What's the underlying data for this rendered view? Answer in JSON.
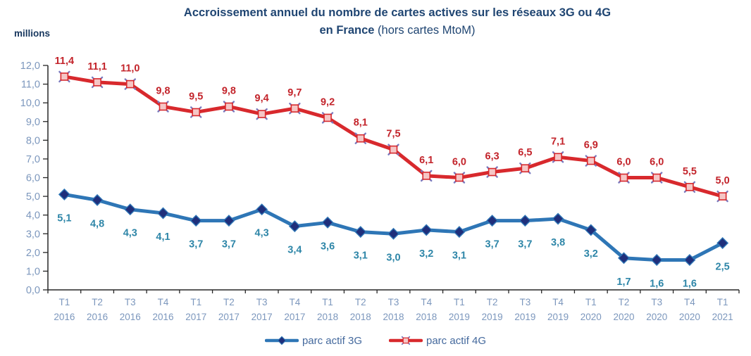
{
  "header": {
    "title_line1": "Accroissement annuel du nombre de cartes actives sur les réseaux 3G ou 4G",
    "title_line2_bold": "en France",
    "title_line2_rest": " (hors cartes MtoM)",
    "unit_label": "millions"
  },
  "colors": {
    "title": "#1F4572",
    "unit_label": "#17375E",
    "axis_line": "#262626",
    "axis_tick_text": "#7C97BD",
    "legend_text": "#44699D",
    "background": "#FFFFFF"
  },
  "chart_data": {
    "type": "line",
    "title": "Accroissement annuel du nombre de cartes actives sur les réseaux 3G ou 4G en France (hors cartes MtoM)",
    "xlabel": "",
    "ylabel": "millions",
    "ylim": [
      0,
      12
    ],
    "ytick_step": 1,
    "decimal_separator": ",",
    "grid": false,
    "legend_position": "bottom",
    "x_categories": [
      {
        "quarter": "T1",
        "year": "2016"
      },
      {
        "quarter": "T2",
        "year": "2016"
      },
      {
        "quarter": "T3",
        "year": "2016"
      },
      {
        "quarter": "T4",
        "year": "2016"
      },
      {
        "quarter": "T1",
        "year": "2017"
      },
      {
        "quarter": "T2",
        "year": "2017"
      },
      {
        "quarter": "T3",
        "year": "2017"
      },
      {
        "quarter": "T4",
        "year": "2017"
      },
      {
        "quarter": "T1",
        "year": "2018"
      },
      {
        "quarter": "T2",
        "year": "2018"
      },
      {
        "quarter": "T3",
        "year": "2018"
      },
      {
        "quarter": "T4",
        "year": "2018"
      },
      {
        "quarter": "T1",
        "year": "2019"
      },
      {
        "quarter": "T2",
        "year": "2019"
      },
      {
        "quarter": "T3",
        "year": "2019"
      },
      {
        "quarter": "T4",
        "year": "2019"
      },
      {
        "quarter": "T1",
        "year": "2020"
      },
      {
        "quarter": "T2",
        "year": "2020"
      },
      {
        "quarter": "T3",
        "year": "2020"
      },
      {
        "quarter": "T4",
        "year": "2020"
      },
      {
        "quarter": "T1",
        "year": "2021"
      }
    ],
    "series": [
      {
        "name": "parc actif 3G",
        "marker": "diamond",
        "line_color": "#2E76B6",
        "marker_fill": "#1F2F7B",
        "marker_stroke": "#2E76B6",
        "label_color": "#2E86A8",
        "label_position": "below",
        "values": [
          5.1,
          4.8,
          4.3,
          4.1,
          3.7,
          3.7,
          4.3,
          3.4,
          3.6,
          3.1,
          3.0,
          3.2,
          3.1,
          3.7,
          3.7,
          3.8,
          3.2,
          1.7,
          1.6,
          1.6,
          2.5
        ]
      },
      {
        "name": "parc actif 4G",
        "marker": "x-square",
        "line_color": "#D8292D",
        "cross_color": "#7A7ABF",
        "marker_fill": "#F5C6C6",
        "marker_stroke": "#D8292D",
        "label_color": "#C3242B",
        "label_position": "above",
        "values": [
          11.4,
          11.1,
          11.0,
          9.8,
          9.5,
          9.8,
          9.4,
          9.7,
          9.2,
          8.1,
          7.5,
          6.1,
          6.0,
          6.3,
          6.5,
          7.1,
          6.9,
          6.0,
          6.0,
          5.5,
          5.0
        ]
      }
    ]
  }
}
